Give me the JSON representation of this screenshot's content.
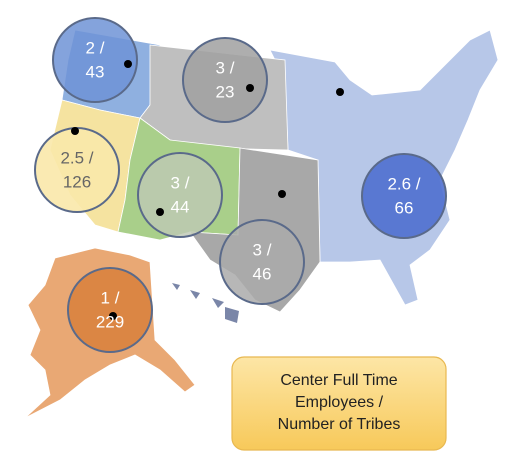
{
  "bubbles": [
    {
      "line1": "2 /",
      "line2": "43"
    },
    {
      "line1": "3 /",
      "line2": "23"
    },
    {
      "line1": "2.5 /",
      "line2": "126"
    },
    {
      "line1": "3 /",
      "line2": "44"
    },
    {
      "line1": "3 /",
      "line2": "46"
    },
    {
      "line1": "2.6 /",
      "line2": "66"
    },
    {
      "line1": "1 /",
      "line2": "229"
    }
  ],
  "legend": {
    "lines": [
      "Center Full Time",
      "Employees /",
      "Number of Tribes"
    ]
  }
}
